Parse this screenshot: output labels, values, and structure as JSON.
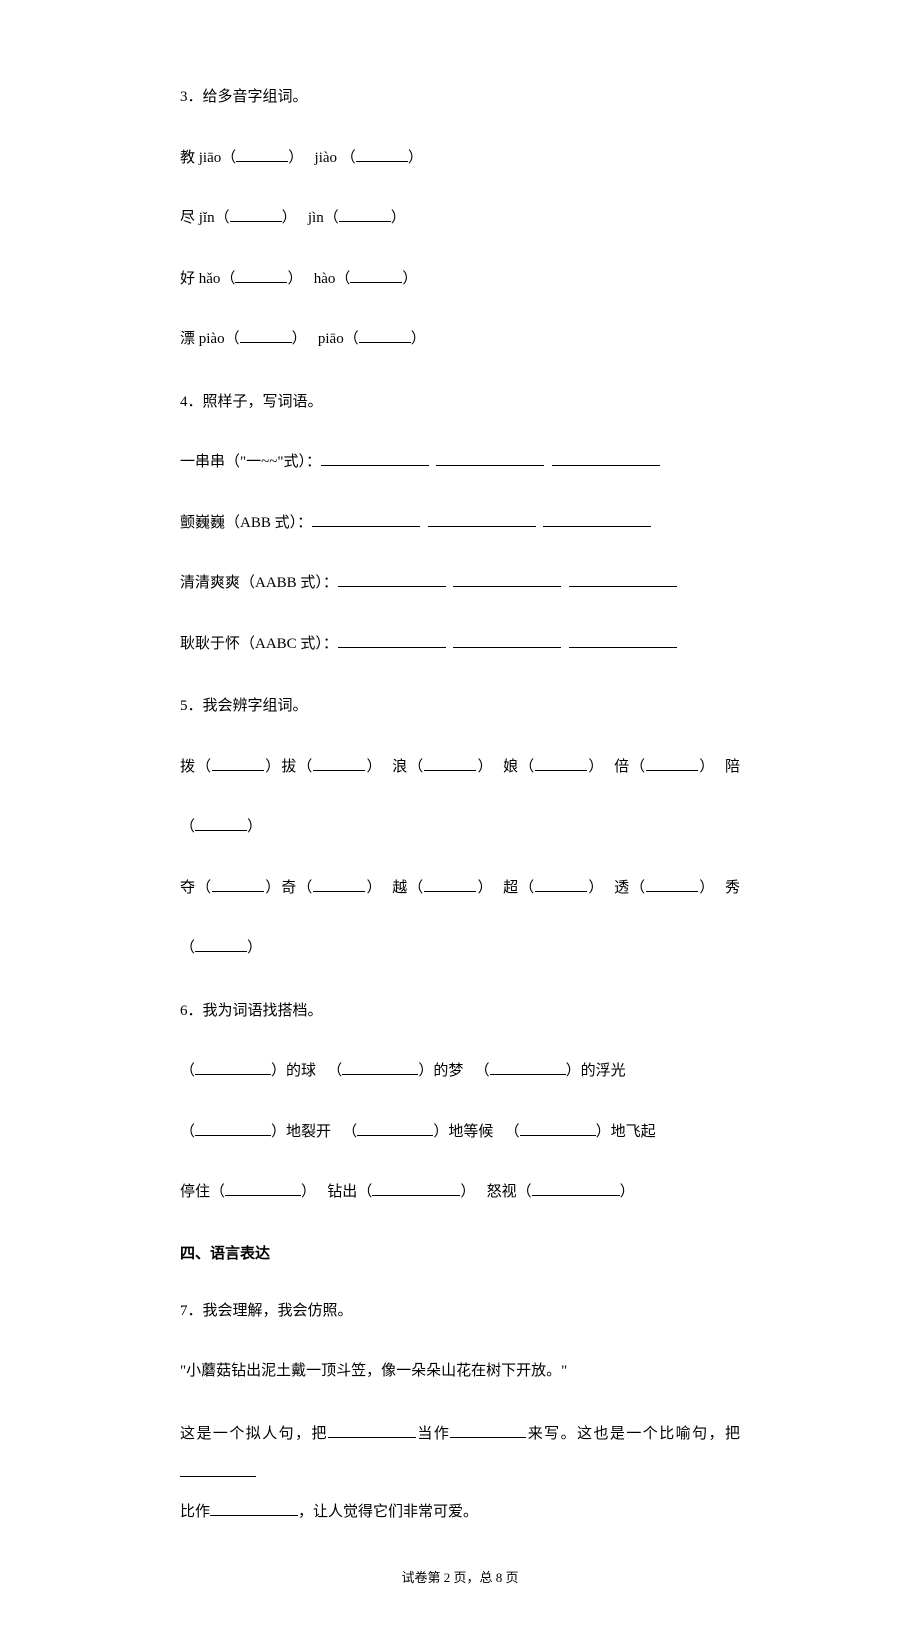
{
  "q3": {
    "title": "3．给多音字组词。",
    "rows": [
      {
        "char": "教",
        "p1": "jiāo",
        "p2": "jiào"
      },
      {
        "char": "尽",
        "p1": "jǐn",
        "p2": "jìn"
      },
      {
        "char": "好",
        "p1": "hǎo",
        "p2": "hào"
      },
      {
        "char": "漂",
        "p1": "piào",
        "p2": "piāo"
      }
    ]
  },
  "q4": {
    "title": "4．照样子，写词语。",
    "rows": [
      {
        "label": "一串串（\"一~~\"式）："
      },
      {
        "label": "颤巍巍（ABB 式）："
      },
      {
        "label": "清清爽爽（AABB 式）："
      },
      {
        "label": "耿耿于怀（AABC 式）："
      }
    ]
  },
  "q5": {
    "title": "5．我会辨字组词。",
    "row1": {
      "a": "拨",
      "b": "拔",
      "c": "浪",
      "d": "娘",
      "e": "倍",
      "f": "陪"
    },
    "row2": {
      "a": "夺",
      "b": "奇",
      "c": "越",
      "d": "超",
      "e": "透",
      "f": "秀"
    }
  },
  "q6": {
    "title": "6．我为词语找搭档。",
    "r1": {
      "a": "的球",
      "b": "的梦",
      "c": "的浮光"
    },
    "r2": {
      "a": "地裂开",
      "b": "地等候",
      "c": "地飞起"
    },
    "r3": {
      "a": "停住",
      "b": "钻出",
      "c": "怒视"
    }
  },
  "section4": "四、语言表达",
  "q7": {
    "title": "7．我会理解，我会仿照。",
    "quote": "\"小蘑菇钻出泥土戴一顶斗笠，像一朵朵山花在树下开放。\"",
    "p1a": "这是一个拟人句，把",
    "p1b": "当作",
    "p1c": "来写。这也是一个比喻句，把",
    "p2a": "比作",
    "p2b": "，让人觉得它们非常可爱。"
  },
  "footer": {
    "a": "试卷第 2 页，总 8 页"
  }
}
